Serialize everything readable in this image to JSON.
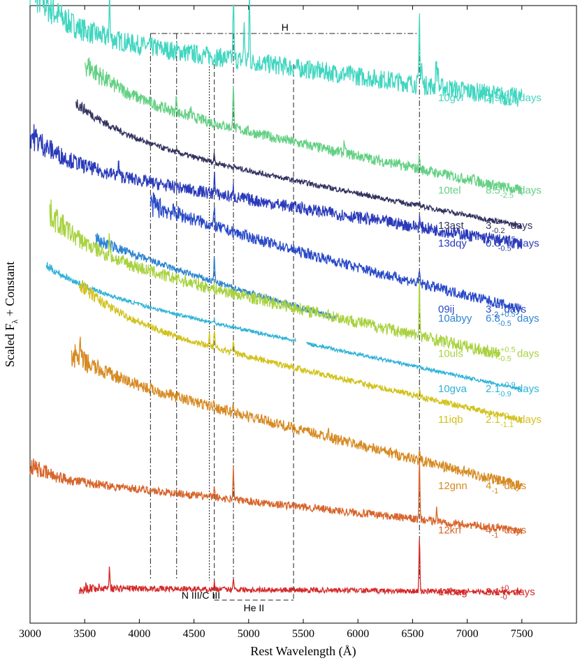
{
  "chart_data": {
    "type": "line",
    "title": "",
    "xlabel": "Rest Wavelength (Å)",
    "ylabel": "Scaled F",
    "ylabel_subscript": "λ",
    "ylabel_suffix": " + Constant",
    "xlim": [
      3000,
      8000
    ],
    "xticks": [
      3000,
      3500,
      4000,
      4500,
      5000,
      5500,
      6000,
      6500,
      7000,
      7500
    ],
    "ylim": [
      0,
      14
    ],
    "grid": false,
    "line_ids": [
      {
        "label": "H",
        "wavelengths": [
          4102,
          4341,
          4861,
          6563
        ],
        "style": "dash-dot"
      },
      {
        "label": "N III/C III",
        "wavelengths": [
          4640
        ],
        "style": "dotted"
      },
      {
        "label": "He II",
        "wavelengths": [
          4686,
          5411
        ],
        "style": "dashed"
      }
    ],
    "series": [
      {
        "name": "10gvf",
        "epoch_value": "2.9",
        "epoch_upper": "+0",
        "epoch_lower": "-0.7",
        "epoch_unit": "days",
        "color": "#40d6c0",
        "x_range": [
          3000,
          7500
        ],
        "y_start": 13.4,
        "y_end": 11.9,
        "amp": 1.1,
        "tau": 300,
        "noise": 0.22,
        "noise_scale": 1.0,
        "lines": [
          [
            3727,
            1.0
          ],
          [
            4861,
            1.4
          ],
          [
            4959,
            0.9
          ],
          [
            5007,
            1.5
          ],
          [
            6563,
            1.6
          ],
          [
            6583,
            0.5
          ],
          [
            6716,
            0.6
          ],
          [
            6731,
            0.5
          ]
        ]
      },
      {
        "name": "10tel",
        "epoch_value": "8.5",
        "epoch_upper": "+0",
        "epoch_lower": "-2.5",
        "epoch_unit": "days",
        "color": "#63d083",
        "x_range": [
          3500,
          7500
        ],
        "y_start": 11.9,
        "y_end": 9.8,
        "amp": 0.8,
        "tau": 450,
        "noise": 0.12,
        "noise_scale": 1.0,
        "lines": [
          [
            4340,
            0.4
          ],
          [
            4470,
            0.2
          ],
          [
            4861,
            1.1
          ],
          [
            5876,
            0.3
          ],
          [
            6563,
            0.3
          ],
          [
            7065,
            0.2
          ]
        ]
      },
      {
        "name": "13ast",
        "epoch_value": "3",
        "epoch_upper": "+0",
        "epoch_lower": "-0.2",
        "epoch_unit": "days",
        "color": "#32325f",
        "x_range": [
          3420,
          7500
        ],
        "y_start": 11.0,
        "y_end": 9.0,
        "amp": 0.8,
        "tau": 500,
        "noise": 0.06,
        "noise_scale": 1.0,
        "lines": [
          [
            4686,
            0.2
          ],
          [
            6563,
            0.1
          ]
        ]
      },
      {
        "name": "13dqy",
        "epoch_value": "0.6",
        "epoch_upper": "+0.5",
        "epoch_lower": "-0.5",
        "epoch_unit": "days",
        "color": "#2a3aba",
        "x_range": [
          3000,
          7500
        ],
        "y_start": 10.4,
        "y_end": 8.6,
        "amp": 0.7,
        "tau": 350,
        "noise": 0.14,
        "noise_scale": 1.0,
        "lines": [
          [
            3810,
            0.3
          ],
          [
            4340,
            0.1
          ],
          [
            4686,
            0.5
          ],
          [
            4861,
            0.2
          ],
          [
            6563,
            0.2
          ]
        ]
      },
      {
        "name": "09ij",
        "epoch_value": "3",
        "epoch_upper": "+2",
        "epoch_lower": "-2",
        "epoch_unit": "days",
        "color": "#2849c8",
        "x_range": [
          4100,
          7500
        ],
        "y_start": 9.1,
        "y_end": 7.1,
        "amp": 0.4,
        "tau": 1200,
        "noise": 0.12,
        "noise_scale": 1.0,
        "lines": [
          [
            4686,
            0.4
          ],
          [
            6563,
            0.3
          ]
        ]
      },
      {
        "name": "10abyy",
        "epoch_value": "6.8",
        "epoch_upper": "+0.5",
        "epoch_lower": "-0.5",
        "epoch_unit": "days",
        "color": "#2d84d3",
        "x_range": [
          3600,
          5800
        ],
        "y_start": 8.4,
        "y_end": 6.9,
        "amp": 0.3,
        "tau": 800,
        "noise": 0.07,
        "noise_scale": 1.0,
        "lines": [
          [
            4686,
            0.6
          ]
        ]
      },
      {
        "name": "10uls",
        "epoch_value": "3.5",
        "epoch_upper": "+0.5",
        "epoch_lower": "-0.5",
        "epoch_unit": "days",
        "color": "#a8d23f",
        "x_range": [
          3180,
          7300
        ],
        "y_start": 8.4,
        "y_end": 6.1,
        "amp": 0.9,
        "tau": 400,
        "noise": 0.14,
        "noise_scale": 1.0,
        "lines": [
          [
            3727,
            0.5
          ],
          [
            6563,
            1.3
          ]
        ]
      },
      {
        "name": "10gva",
        "epoch_value": "2.1",
        "epoch_upper": "+0.9",
        "epoch_lower": "-0.9",
        "epoch_unit": "days",
        "color": "#2eb2d8",
        "x_range": [
          3150,
          7500
        ],
        "y_start": 7.6,
        "y_end": 5.3,
        "amp": 0.5,
        "tau": 450,
        "noise": 0.04,
        "noise_scale": 1.0,
        "gap": [
          5430,
          5530
        ],
        "lines": [
          [
            4686,
            0.1
          ]
        ]
      },
      {
        "name": "11iqb",
        "epoch_value": "2.1",
        "epoch_upper": "+0",
        "epoch_lower": "-1.1",
        "epoch_unit": "days",
        "color": "#d2c21d",
        "x_range": [
          3450,
          7500
        ],
        "y_start": 6.9,
        "y_end": 4.6,
        "amp": 0.8,
        "tau": 450,
        "noise": 0.07,
        "noise_scale": 1.0,
        "lines": [
          [
            4640,
            0.3
          ],
          [
            4686,
            0.4
          ],
          [
            4861,
            0.3
          ],
          [
            6563,
            0.2
          ]
        ]
      },
      {
        "name": "12gnn",
        "epoch_value": "4",
        "epoch_upper": "+1",
        "epoch_lower": "-1",
        "epoch_unit": "days",
        "color": "#d68a22",
        "x_range": [
          3380,
          7500
        ],
        "y_start": 5.7,
        "y_end": 3.1,
        "amp": 0.4,
        "tau": 400,
        "noise": 0.12,
        "noise_scale": 1.0,
        "lines": [
          [
            3460,
            0.4
          ],
          [
            4686,
            0.2
          ],
          [
            4861,
            0.2
          ],
          [
            5730,
            0.3
          ],
          [
            6563,
            0.2
          ]
        ]
      },
      {
        "name": "12krf",
        "epoch_value": "4",
        "epoch_upper": "+1",
        "epoch_lower": "-1",
        "epoch_unit": "days",
        "color": "#d7642a",
        "x_range": [
          3000,
          7500
        ],
        "y_start": 3.3,
        "y_end": 2.1,
        "amp": 0.3,
        "tau": 200,
        "noise": 0.09,
        "noise_scale": 1.0,
        "lines": [
          [
            4686,
            0.2
          ],
          [
            4861,
            0.7
          ],
          [
            6563,
            1.3
          ],
          [
            6720,
            0.3
          ]
        ]
      },
      {
        "name": "14bag",
        "epoch_value": "3.1",
        "epoch_upper": "+0",
        "epoch_lower": "-0",
        "epoch_unit": "days",
        "color": "#d42929",
        "x_range": [
          3450,
          7500
        ],
        "y_start": 0.8,
        "y_end": 0.7,
        "amp": 0.0,
        "tau": 400,
        "noise": 0.06,
        "noise_scale": 1.0,
        "lines": [
          [
            3727,
            0.5
          ],
          [
            4686,
            0.15
          ],
          [
            4861,
            0.3
          ],
          [
            6563,
            1.2
          ]
        ]
      }
    ]
  }
}
